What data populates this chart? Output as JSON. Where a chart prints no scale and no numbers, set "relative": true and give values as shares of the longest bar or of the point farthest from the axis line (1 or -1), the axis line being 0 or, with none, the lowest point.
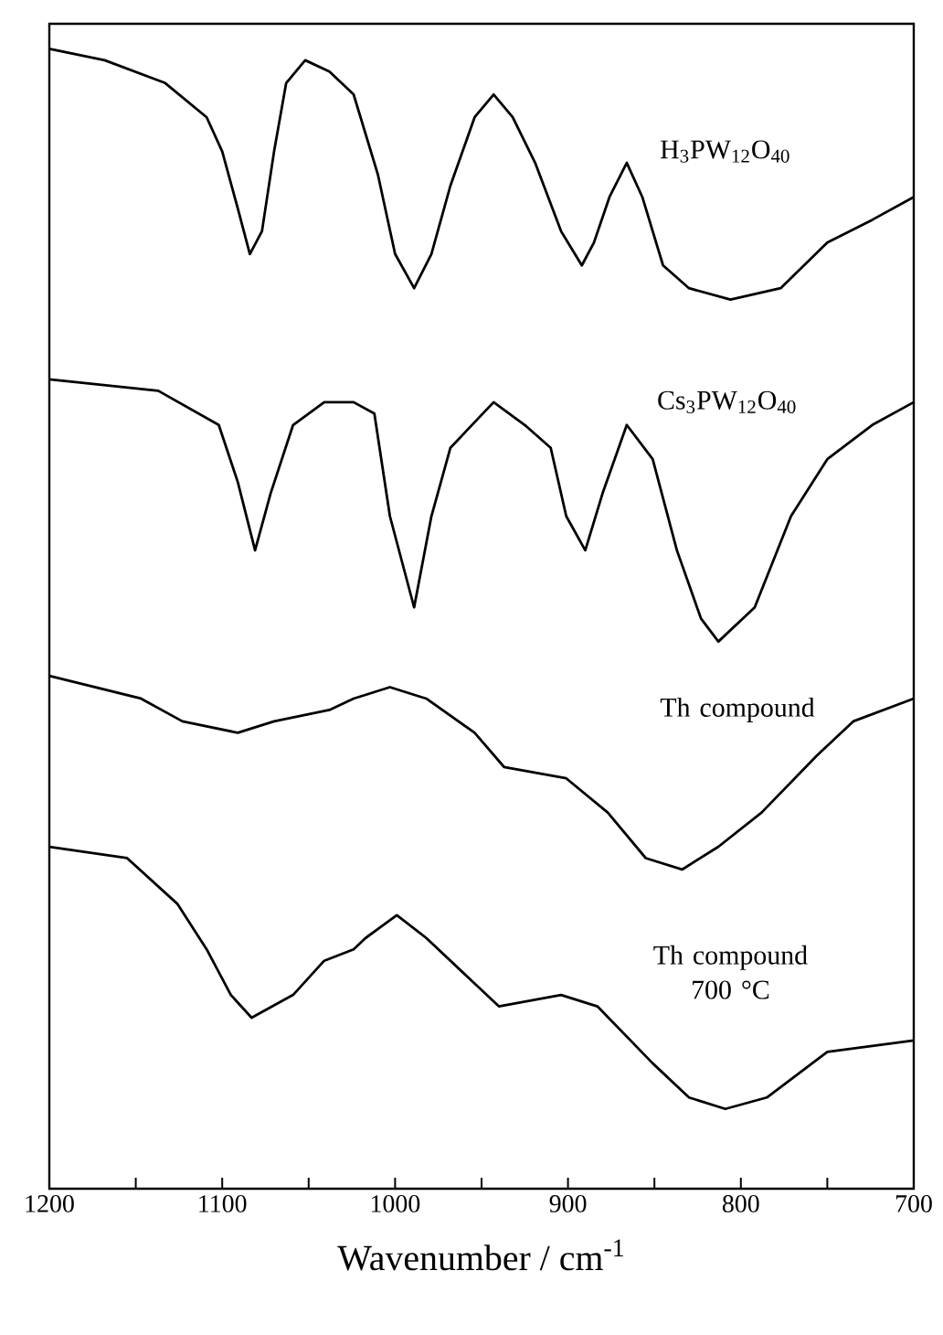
{
  "chart_data": {
    "type": "line",
    "relative": true,
    "xlabel": "Wavenumber / cm$^{-1}$",
    "xlim": [
      1200,
      700
    ],
    "xticks": [
      1200,
      {
        "value": 1150,
        "label": null
      },
      1100,
      {
        "value": 1050,
        "label": null
      },
      1000,
      {
        "value": 950,
        "label": null
      },
      900,
      {
        "value": 850,
        "label": null
      },
      800,
      {
        "value": 750,
        "label": null
      },
      700
    ],
    "series": [
      {
        "name": "H$_{3}$PW$_{12}$O$_{40}$",
        "color": "#000000",
        "x": [
          1200,
          1168,
          1133,
          1109,
          1100,
          1091,
          1084,
          1077,
          1070,
          1063,
          1052,
          1038,
          1024,
          1010,
          1000,
          989,
          979,
          968,
          954,
          943,
          932,
          919,
          904,
          892,
          885,
          876,
          866,
          857,
          845,
          830,
          806,
          777,
          750,
          724,
          700
        ],
        "values": [
          1.0,
          0.99,
          0.97,
          0.94,
          0.91,
          0.86,
          0.82,
          0.84,
          0.91,
          0.97,
          0.99,
          0.98,
          0.96,
          0.89,
          0.82,
          0.79,
          0.82,
          0.88,
          0.94,
          0.96,
          0.94,
          0.9,
          0.84,
          0.81,
          0.83,
          0.87,
          0.9,
          0.87,
          0.81,
          0.79,
          0.78,
          0.79,
          0.83,
          0.85,
          0.87
        ]
      },
      {
        "name": "Cs$_{3}$PW$_{12}$O$_{40}$",
        "color": "#000000",
        "x": [
          1200,
          1137,
          1102,
          1091,
          1081,
          1072,
          1059,
          1041,
          1024,
          1012,
          1003,
          989,
          979,
          968,
          943,
          925,
          910,
          901,
          890,
          880,
          866,
          851,
          837,
          823,
          813,
          792,
          771,
          750,
          724,
          700
        ],
        "values": [
          0.71,
          0.7,
          0.67,
          0.62,
          0.56,
          0.61,
          0.67,
          0.69,
          0.69,
          0.68,
          0.59,
          0.51,
          0.59,
          0.65,
          0.69,
          0.67,
          0.65,
          0.59,
          0.56,
          0.61,
          0.67,
          0.64,
          0.56,
          0.5,
          0.48,
          0.51,
          0.59,
          0.64,
          0.67,
          0.69
        ]
      },
      {
        "name": "Th compound",
        "color": "#000000",
        "x": [
          1200,
          1147,
          1123,
          1091,
          1070,
          1038,
          1024,
          1003,
          982,
          954,
          937,
          901,
          877,
          855,
          834,
          813,
          788,
          756,
          735,
          700
        ],
        "values": [
          0.45,
          0.43,
          0.41,
          0.4,
          0.41,
          0.42,
          0.43,
          0.44,
          0.43,
          0.4,
          0.37,
          0.36,
          0.33,
          0.29,
          0.28,
          0.3,
          0.33,
          0.38,
          0.41,
          0.43
        ]
      },
      {
        "name": "Th compound 700 °C",
        "color": "#000000",
        "x": [
          1200,
          1155,
          1126,
          1109,
          1095,
          1083,
          1059,
          1041,
          1024,
          1017,
          999,
          982,
          961,
          940,
          904,
          883,
          851,
          830,
          809,
          785,
          750,
          700
        ],
        "values": [
          0.3,
          0.29,
          0.25,
          0.21,
          0.17,
          0.15,
          0.17,
          0.2,
          0.21,
          0.22,
          0.24,
          0.22,
          0.19,
          0.16,
          0.17,
          0.16,
          0.11,
          0.08,
          0.07,
          0.08,
          0.12,
          0.13
        ]
      }
    ]
  }
}
